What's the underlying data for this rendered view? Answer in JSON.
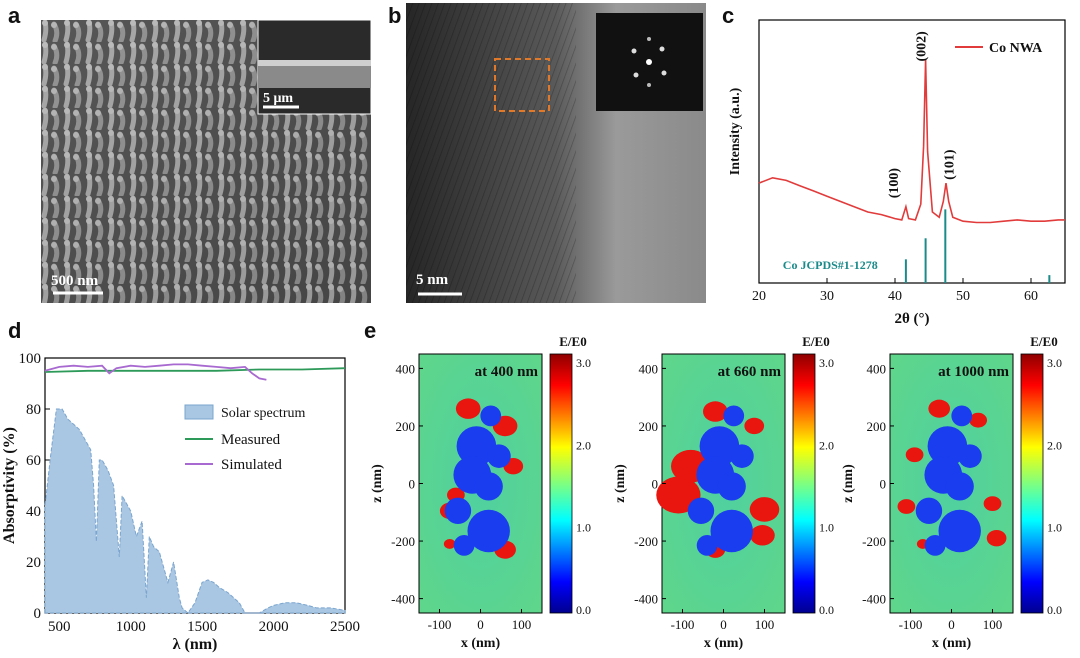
{
  "panels": {
    "a": {
      "label": "a",
      "scale_main": "500 nm",
      "scale_inset": "5 μm"
    },
    "b": {
      "label": "b",
      "scale": "5 nm"
    },
    "c": {
      "label": "c"
    },
    "d": {
      "label": "d"
    },
    "e": {
      "label": "e"
    }
  },
  "chart_data": [
    {
      "type": "line",
      "panel": "c",
      "xlabel": "2θ (°)",
      "ylabel": "Intensity (a.u.)",
      "xlim": [
        20,
        65
      ],
      "xticks": [
        20,
        30,
        40,
        50,
        60
      ],
      "series": [
        {
          "name": "Co NWA",
          "color": "#e23b3b",
          "x": [
            20,
            22,
            24,
            26,
            28,
            30,
            32,
            34,
            36,
            38,
            40,
            41,
            41.6,
            42,
            43,
            43.8,
            44.2,
            44.5,
            44.8,
            45.5,
            46.5,
            47.1,
            47.5,
            47.9,
            48.5,
            50,
            52,
            54,
            56,
            58,
            60,
            62,
            64,
            65
          ],
          "y": [
            0.38,
            0.4,
            0.39,
            0.37,
            0.35,
            0.33,
            0.31,
            0.29,
            0.27,
            0.26,
            0.245,
            0.24,
            0.29,
            0.245,
            0.24,
            0.3,
            0.52,
            0.85,
            0.5,
            0.27,
            0.25,
            0.31,
            0.38,
            0.31,
            0.25,
            0.235,
            0.23,
            0.23,
            0.235,
            0.24,
            0.235,
            0.235,
            0.24,
            0.24
          ]
        }
      ],
      "reference": {
        "name": "Co JCPDS#1-1278",
        "color": "#1a8a8a",
        "peaks": [
          {
            "x": 41.6,
            "h": 0.09
          },
          {
            "x": 44.5,
            "h": 0.17
          },
          {
            "x": 47.4,
            "h": 0.28
          },
          {
            "x": 62.7,
            "h": 0.03
          }
        ]
      },
      "annotations": [
        {
          "text": "(100)",
          "x": 41.6
        },
        {
          "text": "(002)",
          "x": 44.5
        },
        {
          "text": "(101)",
          "x": 47.4
        }
      ]
    },
    {
      "type": "area",
      "panel": "d",
      "xlabel": "λ (nm)",
      "ylabel": "Absorptivity (%)",
      "xlim": [
        400,
        2500
      ],
      "ylim": [
        0,
        100
      ],
      "xticks": [
        500,
        1000,
        1500,
        2000,
        2500
      ],
      "yticks": [
        0,
        20,
        40,
        60,
        80,
        100
      ],
      "series": [
        {
          "name": "Solar spectrum",
          "kind": "area",
          "color": "#a9c6e2",
          "x": [
            400,
            440,
            480,
            520,
            560,
            600,
            640,
            680,
            720,
            740,
            760,
            780,
            800,
            840,
            880,
            920,
            940,
            960,
            1000,
            1040,
            1080,
            1110,
            1130,
            1160,
            1200,
            1260,
            1300,
            1340,
            1360,
            1400,
            1450,
            1500,
            1540,
            1580,
            1620,
            1680,
            1760,
            1800,
            1840,
            1900,
            1960,
            2000,
            2080,
            2160,
            2240,
            2300,
            2400,
            2500
          ],
          "y": [
            42,
            62,
            80,
            80,
            76,
            74,
            72,
            68,
            64,
            50,
            28,
            60,
            60,
            56,
            50,
            22,
            46,
            44,
            40,
            30,
            36,
            6,
            30,
            26,
            24,
            12,
            20,
            6,
            2,
            0,
            4,
            12,
            13,
            12,
            10,
            8,
            4,
            0,
            0,
            0,
            2,
            3,
            4,
            4,
            3,
            2,
            2,
            1
          ]
        },
        {
          "name": "Measured",
          "kind": "line",
          "color": "#2e9a5a",
          "x": [
            400,
            700,
            1000,
            1300,
            1600,
            1900,
            2200,
            2500
          ],
          "y": [
            94.5,
            95,
            95,
            95,
            95,
            95.5,
            95.5,
            96
          ]
        },
        {
          "name": "Simulated",
          "kind": "line",
          "color": "#a86ad0",
          "x": [
            400,
            500,
            600,
            700,
            800,
            850,
            900,
            1000,
            1100,
            1200,
            1300,
            1400,
            1500,
            1600,
            1700,
            1800,
            1850,
            1900,
            1950
          ],
          "y": [
            95,
            96.5,
            97,
            96.5,
            97,
            94,
            96,
            97,
            96.5,
            97,
            97.5,
            97.5,
            97,
            96.5,
            96,
            96.5,
            94,
            92,
            91.5
          ]
        }
      ]
    },
    {
      "type": "heatmap",
      "panel": "e",
      "colorbar": {
        "title": "E/E0",
        "ticks": [
          "0.0",
          "1.0",
          "2.0",
          "3.0"
        ],
        "range": [
          0,
          3
        ]
      },
      "xlabel": "x (nm)",
      "ylabel": "z (nm)",
      "xticks": [
        -100,
        0,
        100
      ],
      "yticks": [
        400,
        200,
        0,
        -200,
        -400
      ],
      "maps": [
        {
          "label": "at 400 nm"
        },
        {
          "label": "at 660 nm"
        },
        {
          "label": "at 1000 nm"
        }
      ]
    }
  ]
}
